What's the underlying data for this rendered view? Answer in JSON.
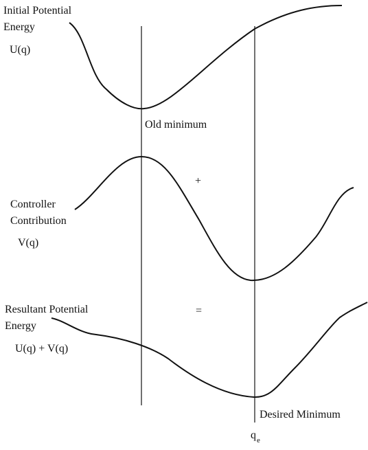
{
  "curves": [
    {
      "label": [
        "Initial Potential",
        "Energy"
      ],
      "function": "U(q)"
    },
    {
      "label": [
        "Controller",
        "Contribution"
      ],
      "function": "V(q)"
    },
    {
      "label": [
        "Resultant Potential",
        "Energy"
      ],
      "function": "U(q) + V(q)"
    }
  ],
  "operators": [
    "+",
    "="
  ],
  "annotations": {
    "old_minimum": "Old minimum",
    "desired_minimum": "Desired Minimum"
  },
  "axis_marker": {
    "base": "q",
    "subscript": "e"
  }
}
